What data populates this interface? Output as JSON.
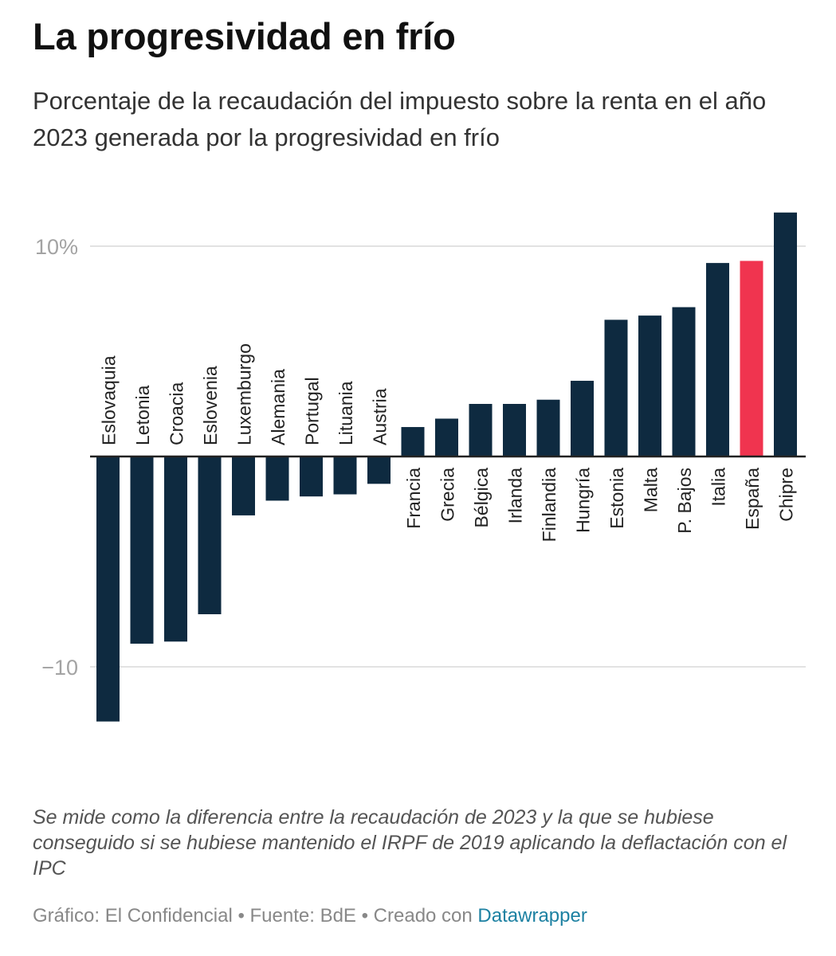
{
  "header": {
    "title": "La progresividad en frío",
    "subtitle": "Porcentaje de la recaudación del impuesto sobre la renta en el año 2023 generada por la progresividad en frío"
  },
  "chart_data": {
    "type": "bar",
    "categories": [
      "Eslovaquia",
      "Letonia",
      "Croacia",
      "Eslovenia",
      "Luxemburgo",
      "Alemania",
      "Portugal",
      "Lituania",
      "Austria",
      "Francia",
      "Grecia",
      "Bélgica",
      "Irlanda",
      "Finlandia",
      "Hungría",
      "Estonia",
      "Malta",
      "P. Bajos",
      "Italia",
      "España",
      "Chipre"
    ],
    "values": [
      -12.6,
      -8.9,
      -8.8,
      -7.5,
      -2.8,
      -2.1,
      -1.9,
      -1.8,
      -1.3,
      1.4,
      1.8,
      2.5,
      2.5,
      2.7,
      3.6,
      6.5,
      6.7,
      7.1,
      9.2,
      9.3,
      11.6
    ],
    "highlight_category": "España",
    "ylim": [
      -13.5,
      12.5
    ],
    "y_ticks": [
      {
        "value": 10,
        "label": "10%"
      },
      {
        "value": -10,
        "label": "−10"
      }
    ],
    "grid": true,
    "colors": {
      "bar": "#0e2a40",
      "highlight": "#f0344f",
      "gridline": "#e2e2e2",
      "baseline": "#222222",
      "tick_label": "#a3a3a3",
      "category_label": "#222222"
    }
  },
  "notes": {
    "text": "Se mide como la diferencia entre la recaudación de 2023 y la que se hubiese conseguido si se hubiese mantenido el IRPF de 2019 aplicando la deflactación con el IPC"
  },
  "footer": {
    "prefix": "Gráfico: El Confidencial • Fuente: BdE • Creado con ",
    "link_text": "Datawrapper"
  }
}
